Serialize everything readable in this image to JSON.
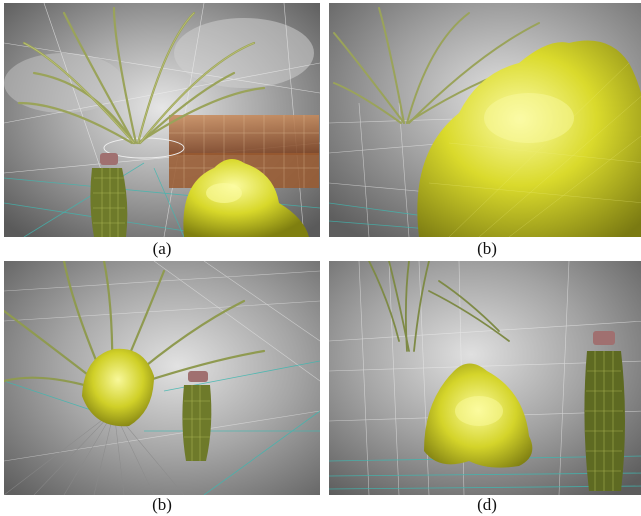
{
  "figure": {
    "panels": [
      {
        "id": "a",
        "caption": "(a)"
      },
      {
        "id": "b",
        "caption": "(b)"
      },
      {
        "id": "c",
        "caption": "(b)"
      },
      {
        "id": "d",
        "caption": "(d)"
      }
    ]
  },
  "colors": {
    "sky": "#7a7a7a",
    "cloud": "#dcdcdc",
    "wireframe": "#e6e6e6",
    "floor_grid": "#3fb7b0",
    "plant_leaf": "#9aa35a",
    "bubble": "#d6d62a",
    "bubble_highlight": "#fbfb9a",
    "bottle": "#6e7a2a",
    "bottle_cap": "#a07070",
    "sofa": "#b26a3a"
  }
}
